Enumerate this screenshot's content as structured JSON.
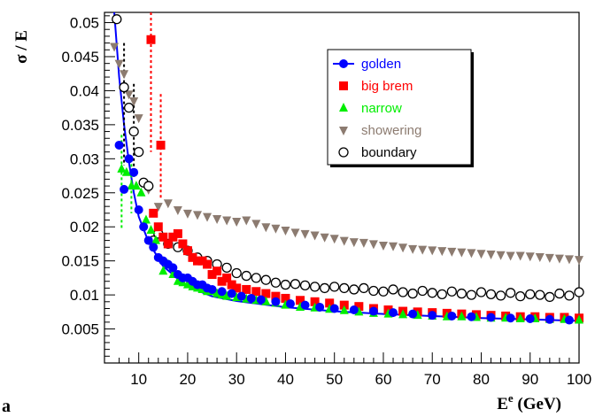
{
  "panel_label": "a",
  "chart_data": {
    "type": "scatter",
    "title": "",
    "xlabel": "E",
    "xlabel_sup": "e",
    "xlabel_unit": " (GeV)",
    "ylabel": "σ / E",
    "xlim": [
      3,
      100
    ],
    "ylim": [
      0.0,
      0.0515
    ],
    "xticks": [
      10,
      20,
      30,
      40,
      50,
      60,
      70,
      80,
      90,
      100
    ],
    "yticks": [
      0.005,
      0.01,
      0.015,
      0.02,
      0.025,
      0.03,
      0.035,
      0.04,
      0.045,
      0.05
    ],
    "ytick_labels": [
      "0.005",
      "0.01",
      "0.015",
      "0.02",
      "0.025",
      "0.03",
      "0.035",
      "0.04",
      "0.045",
      "0.05"
    ],
    "grid": false,
    "legend_position": "top-center",
    "fit_curve": {
      "series": "golden",
      "color": "#0000ff",
      "x": [
        5,
        6,
        7,
        8,
        9,
        10,
        12,
        15,
        20,
        25,
        30,
        40,
        50,
        60,
        70,
        80,
        90,
        100
      ],
      "y": [
        0.0515,
        0.042,
        0.035,
        0.0295,
        0.025,
        0.0215,
        0.0178,
        0.0142,
        0.0112,
        0.0098,
        0.0091,
        0.0082,
        0.0076,
        0.0072,
        0.0069,
        0.0066,
        0.0064,
        0.0062
      ]
    },
    "series": [
      {
        "name": "golden",
        "color": "#0000ff",
        "marker": "circle",
        "x": [
          6,
          7,
          8,
          9,
          10,
          11,
          12,
          13,
          14,
          15,
          16,
          17,
          18,
          19,
          20,
          21,
          22,
          23,
          24,
          25,
          27,
          29,
          31,
          33,
          35,
          38,
          41,
          44,
          47,
          50,
          54,
          58,
          62,
          66,
          70,
          74,
          78,
          82,
          86,
          90,
          94,
          98
        ],
        "y": [
          0.032,
          0.0255,
          0.03,
          0.028,
          0.0225,
          0.02,
          0.018,
          0.017,
          0.0155,
          0.015,
          0.0145,
          0.014,
          0.013,
          0.0125,
          0.0125,
          0.012,
          0.0115,
          0.0115,
          0.011,
          0.0108,
          0.0105,
          0.0102,
          0.0098,
          0.0095,
          0.0093,
          0.009,
          0.0087,
          0.0085,
          0.0082,
          0.008,
          0.0078,
          0.0076,
          0.0074,
          0.0072,
          0.007,
          0.0069,
          0.0068,
          0.0067,
          0.0066,
          0.0065,
          0.0064,
          0.0063
        ]
      },
      {
        "name": "big brem",
        "color": "#ff0000",
        "marker": "square",
        "x": [
          12.5,
          14.5,
          13,
          14,
          15,
          16,
          17,
          18,
          19,
          20,
          21,
          22,
          23,
          24,
          25,
          26,
          27,
          28,
          29,
          30,
          32,
          34,
          36,
          38,
          40,
          43,
          46,
          49,
          52,
          55,
          58,
          61,
          64,
          67,
          70,
          73,
          76,
          79,
          82,
          85,
          88,
          91,
          94,
          97,
          100
        ],
        "y": [
          0.0475,
          0.032,
          0.022,
          0.02,
          0.0185,
          0.0175,
          0.0185,
          0.019,
          0.0175,
          0.0165,
          0.0155,
          0.015,
          0.015,
          0.0145,
          0.013,
          0.0135,
          0.012,
          0.0125,
          0.0115,
          0.011,
          0.0108,
          0.0105,
          0.0102,
          0.0098,
          0.0095,
          0.0092,
          0.009,
          0.0088,
          0.0085,
          0.0083,
          0.008,
          0.0078,
          0.0076,
          0.0075,
          0.0074,
          0.0073,
          0.0072,
          0.0071,
          0.007,
          0.0069,
          0.0068,
          0.0068,
          0.0067,
          0.0067,
          0.0066
        ]
      },
      {
        "name": "narrow",
        "color": "#00ee00",
        "marker": "triangle-up",
        "x": [
          6.5,
          7.5,
          8.5,
          9.5,
          10.5,
          11.5,
          12.5,
          13.5,
          15,
          16,
          17,
          18,
          19,
          20,
          21,
          22,
          23,
          24,
          25,
          26,
          27,
          28,
          30,
          32,
          34,
          36,
          38,
          40,
          43,
          46,
          49,
          52,
          55,
          58,
          61,
          64,
          67,
          70,
          73,
          76,
          79,
          82,
          85,
          88,
          91,
          94,
          97,
          100
        ],
        "y": [
          0.0285,
          0.028,
          0.026,
          0.026,
          0.025,
          0.021,
          0.0195,
          0.018,
          0.0135,
          0.0145,
          0.013,
          0.012,
          0.0118,
          0.0115,
          0.0112,
          0.011,
          0.0108,
          0.0105,
          0.0105,
          0.0102,
          0.01,
          0.0098,
          0.0096,
          0.0094,
          0.0092,
          0.009,
          0.0088,
          0.0085,
          0.0082,
          0.0081,
          0.0079,
          0.0077,
          0.0075,
          0.0073,
          0.0072,
          0.0071,
          0.007,
          0.0069,
          0.0068,
          0.0068,
          0.0067,
          0.0066,
          0.0066,
          0.0065,
          0.0065,
          0.0064,
          0.0064,
          0.0063
        ]
      },
      {
        "name": "showering",
        "color": "#8c7b70",
        "marker": "triangle-down",
        "x": [
          5,
          6,
          7,
          8,
          9,
          10,
          12,
          14,
          16,
          18,
          20,
          22,
          24,
          26,
          28,
          30,
          32,
          34,
          36,
          38,
          40,
          42,
          44,
          46,
          48,
          50,
          52,
          54,
          56,
          58,
          60,
          62,
          64,
          66,
          68,
          70,
          72,
          74,
          76,
          78,
          80,
          82,
          84,
          86,
          88,
          90,
          92,
          94,
          96,
          98,
          100
        ],
        "y": [
          0.0465,
          0.044,
          0.0425,
          0.0395,
          0.0385,
          0.036,
          0.0255,
          0.023,
          0.0235,
          0.0225,
          0.022,
          0.0218,
          0.0215,
          0.0212,
          0.021,
          0.0208,
          0.021,
          0.0205,
          0.02,
          0.0198,
          0.0195,
          0.0192,
          0.019,
          0.0188,
          0.0185,
          0.0183,
          0.018,
          0.0178,
          0.0177,
          0.0175,
          0.0173,
          0.0172,
          0.017,
          0.0168,
          0.0167,
          0.0166,
          0.0165,
          0.0164,
          0.0163,
          0.0162,
          0.0161,
          0.016,
          0.0159,
          0.0158,
          0.0158,
          0.0157,
          0.0156,
          0.0155,
          0.0154,
          0.0153,
          0.0152
        ]
      },
      {
        "name": "boundary",
        "color": "#000000",
        "marker": "open-circle",
        "x": [
          5.5,
          7,
          8,
          9,
          10,
          11,
          12,
          13,
          14,
          16,
          18,
          20,
          22,
          24,
          26,
          28,
          30,
          32,
          34,
          36,
          38,
          40,
          42,
          44,
          46,
          48,
          50,
          52,
          54,
          56,
          58,
          60,
          62,
          64,
          66,
          68,
          70,
          72,
          74,
          76,
          78,
          80,
          82,
          84,
          86,
          88,
          90,
          92,
          94,
          96,
          98,
          100
        ],
        "y": [
          0.0505,
          0.0405,
          0.0375,
          0.034,
          0.031,
          0.0265,
          0.026,
          0.018,
          0.019,
          0.0175,
          0.017,
          0.0165,
          0.0155,
          0.015,
          0.0145,
          0.014,
          0.0132,
          0.0128,
          0.0125,
          0.0122,
          0.0118,
          0.0115,
          0.0116,
          0.0114,
          0.0112,
          0.011,
          0.0112,
          0.011,
          0.0108,
          0.011,
          0.0106,
          0.0105,
          0.0108,
          0.0104,
          0.0102,
          0.0106,
          0.0103,
          0.0101,
          0.0105,
          0.0102,
          0.01,
          0.0104,
          0.0101,
          0.0099,
          0.0103,
          0.0098,
          0.0101,
          0.01,
          0.0097,
          0.0102,
          0.0099,
          0.0104
        ]
      }
    ],
    "error_bars": [
      {
        "series": "big brem",
        "x": 12.5,
        "y_low": 0.031,
        "y_high": 0.0515
      },
      {
        "series": "big brem",
        "x": 14.5,
        "y_low": 0.024,
        "y_high": 0.0395
      },
      {
        "series": "narrow",
        "x": 6.5,
        "y_low": 0.0195,
        "y_high": 0.0335
      },
      {
        "series": "narrow",
        "x": 8.5,
        "y_low": 0.022,
        "y_high": 0.03
      },
      {
        "series": "boundary",
        "x": 7,
        "y_low": 0.029,
        "y_high": 0.047
      },
      {
        "series": "boundary",
        "x": 9,
        "y_low": 0.027,
        "y_high": 0.041
      }
    ]
  }
}
